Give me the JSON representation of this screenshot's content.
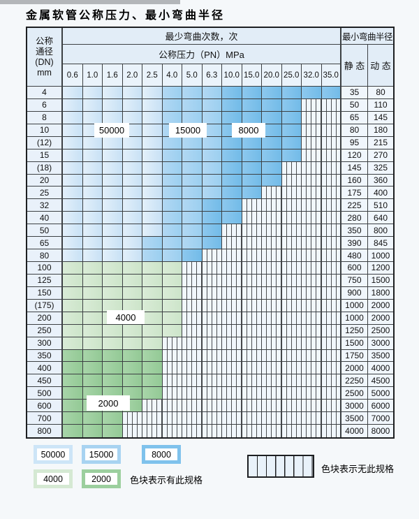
{
  "page": {
    "title": "金属软管公称压力、最小弯曲半径"
  },
  "table": {
    "header": {
      "dn_lines": [
        "公称",
        "通径",
        "(DN)",
        "mm"
      ],
      "bend_cycles_label": "最少弯曲次数，次",
      "pressure_label": "公称压力（PN）MPa",
      "pressure_columns": [
        "0.6",
        "1.0",
        "1.6",
        "2.0",
        "2.5",
        "4.0",
        "5.0",
        "6.3",
        "10.0",
        "15.0",
        "20.0",
        "25.0",
        "32.0",
        "35.0"
      ],
      "radius_label": "最小弯曲半径",
      "static_label": "静 态",
      "dynamic_label": "动 态"
    },
    "cell_legend": {
      "l": "50000",
      "m": "15000",
      "d": "8000",
      "g": "4000",
      "e": "2000",
      "x": "无此规格"
    },
    "rows": [
      {
        "dn": "4",
        "cells": "lllllmmmdddddd",
        "static": "35",
        "dynamic": "80"
      },
      {
        "dn": "6",
        "cells": "lllllmmmddddxx",
        "static": "50",
        "dynamic": "110"
      },
      {
        "dn": "8",
        "cells": "lllllmmmddddxx",
        "static": "65",
        "dynamic": "145"
      },
      {
        "dn": "10",
        "cells": "lllllmmmddddxx",
        "static": "80",
        "dynamic": "180"
      },
      {
        "dn": "(12)",
        "cells": "lllllmmmddddxx",
        "static": "95",
        "dynamic": "215"
      },
      {
        "dn": "15",
        "cells": "lllllmmmddddxx",
        "static": "120",
        "dynamic": "270"
      },
      {
        "dn": "(18)",
        "cells": "lllllmmmdddxxx",
        "static": "145",
        "dynamic": "325"
      },
      {
        "dn": "20",
        "cells": "lllllmmmdddxxx",
        "static": "160",
        "dynamic": "360"
      },
      {
        "dn": "25",
        "cells": "lllllmmmddxxxx",
        "static": "175",
        "dynamic": "400"
      },
      {
        "dn": "32",
        "cells": "lllllmmddxxxxx",
        "static": "225",
        "dynamic": "510"
      },
      {
        "dn": "40",
        "cells": "lllllmmddxxxxx",
        "static": "280",
        "dynamic": "640"
      },
      {
        "dn": "50",
        "cells": "lllllmmdxxxxxx",
        "static": "350",
        "dynamic": "800"
      },
      {
        "dn": "65",
        "cells": "llllmmmdxxxxxx",
        "static": "390",
        "dynamic": "845"
      },
      {
        "dn": "80",
        "cells": "llllmmdxxxxxxx",
        "static": "480",
        "dynamic": "1000"
      },
      {
        "dn": "100",
        "cells": "ggggggxxxxxxxx",
        "static": "600",
        "dynamic": "1200"
      },
      {
        "dn": "125",
        "cells": "ggggggxxxxxxxx",
        "static": "750",
        "dynamic": "1500"
      },
      {
        "dn": "150",
        "cells": "ggggggxxxxxxxx",
        "static": "900",
        "dynamic": "1800"
      },
      {
        "dn": "(175)",
        "cells": "ggggggxxxxxxxx",
        "static": "1000",
        "dynamic": "2000"
      },
      {
        "dn": "200",
        "cells": "ggggggxxxxxxxx",
        "static": "1000",
        "dynamic": "2000"
      },
      {
        "dn": "250",
        "cells": "ggggggxxxxxxxx",
        "static": "1250",
        "dynamic": "2500"
      },
      {
        "dn": "300",
        "cells": "gggggxxxxxxxxx",
        "static": "1500",
        "dynamic": "3000"
      },
      {
        "dn": "350",
        "cells": "eeeeexxxxxxxxx",
        "static": "1750",
        "dynamic": "3500"
      },
      {
        "dn": "400",
        "cells": "eeeeexxxxxxxxx",
        "static": "2000",
        "dynamic": "4000"
      },
      {
        "dn": "450",
        "cells": "eeeeexxxxxxxxx",
        "static": "2250",
        "dynamic": "4500"
      },
      {
        "dn": "500",
        "cells": "eeeeexxxxxxxxx",
        "static": "2500",
        "dynamic": "5000"
      },
      {
        "dn": "600",
        "cells": "eeeexxxxxxxxxx",
        "static": "3000",
        "dynamic": "6000"
      },
      {
        "dn": "700",
        "cells": "eeexxxxxxxxxxx",
        "static": "3500",
        "dynamic": "7000"
      },
      {
        "dn": "800",
        "cells": "eeexxxxxxxxxxx",
        "static": "4000",
        "dynamic": "8000"
      }
    ],
    "overlay_labels": {
      "b50000": "50000",
      "b15000": "15000",
      "b8000": "8000",
      "g4000": "4000",
      "g2000": "2000"
    }
  },
  "legend": {
    "items": [
      {
        "cycles": "50000",
        "color": "#cde5f7"
      },
      {
        "cycles": "15000",
        "color": "#a8d3f1"
      },
      {
        "cycles": "8000",
        "color": "#7fc2ec"
      },
      {
        "cycles": "4000",
        "color": "#d5e9d3"
      },
      {
        "cycles": "2000",
        "color": "#9ccf9e"
      }
    ],
    "has_spec_text": "色块表示有此规格",
    "no_spec_text": "色块表示无此规格"
  }
}
